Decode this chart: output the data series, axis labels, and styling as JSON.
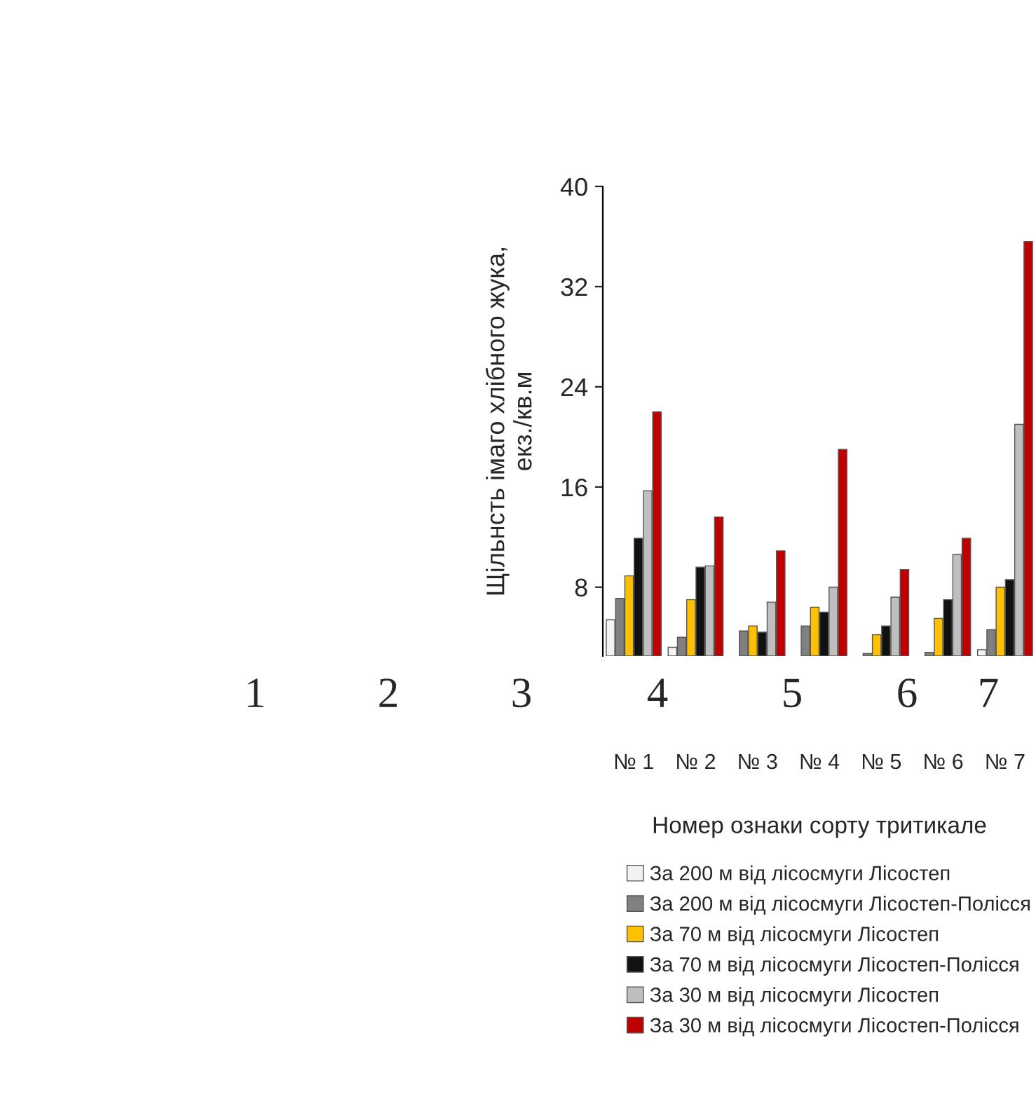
{
  "chart_data": {
    "type": "bar",
    "categories": [
      "№ 1",
      "№ 2",
      "№ 3",
      "№ 4",
      "№ 5",
      "№ 6",
      "№ 7"
    ],
    "series": [
      {
        "name": "За 200 м від лісосмуги Лісостеп",
        "color": "#f2f2f2",
        "values": [
          5.4,
          3.2,
          null,
          null,
          null,
          null,
          3.0
        ]
      },
      {
        "name": "За 200 м від лісосмуги Лісостеп-Полісся",
        "color": "#808080",
        "values": [
          7.1,
          4.0,
          4.5,
          4.9,
          2.7,
          2.8,
          4.6
        ]
      },
      {
        "name": "За 70 м від лісосмуги Лісостеп",
        "color": "#ffc000",
        "values": [
          8.9,
          7.0,
          4.9,
          6.4,
          4.2,
          5.5,
          8.0
        ]
      },
      {
        "name": "За 70 м від лісосмуги Лісостеп-Полісся",
        "color": "#111111",
        "values": [
          11.9,
          9.6,
          4.4,
          6.0,
          4.9,
          7.0,
          8.6
        ]
      },
      {
        "name": "За 30 м від лісосмуги Лісостеп",
        "color": "#bfbfbf",
        "values": [
          15.7,
          9.7,
          6.8,
          8.0,
          7.2,
          10.6,
          21.0
        ]
      },
      {
        "name": "За 30 м від лісосмуги Лісостеп-Полісся",
        "color": "#c00000",
        "values": [
          22.0,
          13.6,
          10.9,
          19.0,
          9.4,
          11.9,
          35.6
        ]
      }
    ],
    "ylabel": "Щільнсть імаго хлібного жука,\nекз./кв.м",
    "xlabel": "Номер ознаки сорту тритикале",
    "ylim": [
      2.5,
      40
    ],
    "yticks": [
      8,
      16,
      24,
      32,
      40
    ],
    "grid": false,
    "legend": "bottom",
    "annotations": [
      "1",
      "2",
      "3",
      "4",
      "5",
      "6",
      "7"
    ]
  }
}
